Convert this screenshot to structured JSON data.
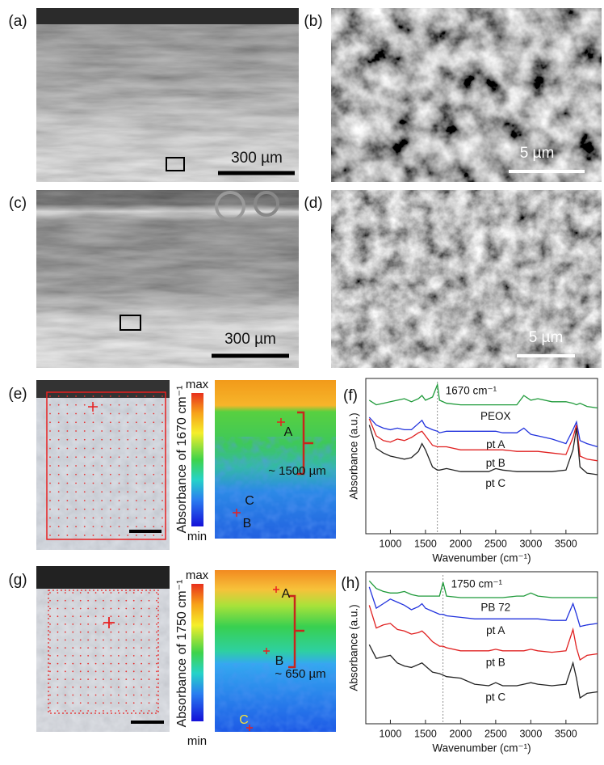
{
  "panel_labels": [
    "(a)",
    "(b)",
    "(c)",
    "(d)",
    "(e)",
    "(f)",
    "(g)",
    "(h)"
  ],
  "scale_bars": {
    "a": "300 µm",
    "b": "5 µm",
    "c": "300 µm",
    "d": "5 µm"
  },
  "map_e": {
    "colorbar_max": "max",
    "colorbar_min": "min",
    "colorbar_label": "Absorbance of 1670 cm⁻¹",
    "points": [
      "A",
      "B",
      "C"
    ],
    "depth": "~ 1500 µm"
  },
  "map_g": {
    "colorbar_max": "max",
    "colorbar_min": "min",
    "colorbar_label": "Absorbance of 1750 cm⁻¹",
    "points": [
      "A",
      "B",
      "C"
    ],
    "depth": "~ 650 µm"
  },
  "chart_data": [
    {
      "type": "line",
      "annotation": "1670 cm⁻¹",
      "reference_line": 1670,
      "xlabel": "Wavenumber (cm⁻¹)",
      "ylabel": "Absorbance (a.u.)",
      "xlim": [
        650,
        3950
      ],
      "xticks": [
        1000,
        1500,
        2000,
        2500,
        3000,
        3500
      ],
      "ylim": [
        0,
        10
      ],
      "x": [
        700,
        800,
        900,
        1000,
        1100,
        1200,
        1300,
        1400,
        1450,
        1500,
        1600,
        1670,
        1700,
        1800,
        2000,
        2200,
        2400,
        2500,
        2600,
        2800,
        2900,
        3000,
        3100,
        3300,
        3500,
        3600,
        3650,
        3700,
        3800,
        3950
      ],
      "series": [
        {
          "name": "PEOX",
          "color": "#1f9a3a",
          "values": [
            8.6,
            8.3,
            8.4,
            8.5,
            8.6,
            8.7,
            8.5,
            8.7,
            8.9,
            8.6,
            8.8,
            9.6,
            8.6,
            8.4,
            8.3,
            8.3,
            8.3,
            8.3,
            8.3,
            8.3,
            8.9,
            8.6,
            8.7,
            8.5,
            8.5,
            8.4,
            8.3,
            8.4,
            8.2,
            8.1
          ]
        },
        {
          "name": "pt A",
          "color": "#2233dd",
          "values": [
            7.5,
            7.0,
            6.8,
            6.7,
            6.8,
            6.7,
            6.7,
            7.1,
            7.3,
            6.9,
            6.7,
            6.6,
            6.5,
            6.6,
            6.6,
            6.6,
            6.6,
            6.6,
            6.5,
            6.5,
            6.8,
            6.4,
            6.3,
            6.1,
            5.8,
            6.7,
            7.2,
            6.0,
            5.8,
            5.6
          ]
        },
        {
          "name": "pt B",
          "color": "#e02020",
          "values": [
            7.4,
            6.3,
            6.0,
            5.9,
            6.1,
            6.0,
            6.2,
            6.5,
            6.6,
            6.3,
            5.7,
            5.6,
            5.6,
            5.6,
            5.4,
            5.4,
            5.4,
            5.4,
            5.4,
            5.3,
            5.3,
            5.3,
            5.3,
            5.2,
            5.1,
            6.2,
            7.0,
            5.0,
            4.8,
            4.7
          ]
        },
        {
          "name": "pt C",
          "color": "#222222",
          "values": [
            7.0,
            5.5,
            5.2,
            5.0,
            4.9,
            4.8,
            4.9,
            5.3,
            5.8,
            5.4,
            4.3,
            4.1,
            4.1,
            4.2,
            4.0,
            4.0,
            4.0,
            4.2,
            4.1,
            4.0,
            4.0,
            4.0,
            4.0,
            4.0,
            4.1,
            5.4,
            6.8,
            4.3,
            3.9,
            3.8
          ]
        }
      ]
    },
    {
      "type": "line",
      "annotation": "1750 cm⁻¹",
      "reference_line": 1750,
      "xlabel": "Wavenumber (cm⁻¹)",
      "ylabel": "Absorbance (a.u.)",
      "xlim": [
        650,
        3950
      ],
      "xticks": [
        1000,
        1500,
        2000,
        2500,
        3000,
        3500
      ],
      "ylim": [
        0,
        10
      ],
      "x": [
        700,
        800,
        900,
        1000,
        1100,
        1200,
        1300,
        1400,
        1450,
        1500,
        1600,
        1700,
        1750,
        1800,
        2000,
        2200,
        2400,
        2500,
        2600,
        2800,
        2900,
        3000,
        3100,
        3300,
        3500,
        3600,
        3650,
        3700,
        3800,
        3950
      ],
      "series": [
        {
          "name": "PB 72",
          "color": "#1f9a3a",
          "values": [
            9.4,
            8.9,
            8.7,
            8.6,
            8.6,
            8.7,
            8.5,
            8.4,
            8.4,
            8.4,
            8.4,
            8.4,
            9.3,
            8.4,
            8.3,
            8.3,
            8.3,
            8.3,
            8.3,
            8.4,
            8.4,
            8.6,
            8.4,
            8.3,
            8.3,
            8.3,
            8.3,
            8.3,
            8.3,
            8.3
          ]
        },
        {
          "name": "pt A",
          "color": "#2233dd",
          "values": [
            9.0,
            7.6,
            7.9,
            8.2,
            8.0,
            7.8,
            7.5,
            7.7,
            7.9,
            7.6,
            7.4,
            7.2,
            7.2,
            7.1,
            7.0,
            6.9,
            6.9,
            6.9,
            6.9,
            6.9,
            6.9,
            6.9,
            6.9,
            6.8,
            6.8,
            7.9,
            7.2,
            6.4,
            6.5,
            6.6
          ]
        },
        {
          "name": "pt B",
          "color": "#e02020",
          "values": [
            7.8,
            6.3,
            6.5,
            6.6,
            6.2,
            6.1,
            5.9,
            6.0,
            6.1,
            5.9,
            5.4,
            5.1,
            5.1,
            5.0,
            4.8,
            4.8,
            4.8,
            4.9,
            4.8,
            4.8,
            4.8,
            4.9,
            4.8,
            4.7,
            4.8,
            6.2,
            5.0,
            4.2,
            4.5,
            4.6
          ]
        },
        {
          "name": "pt C",
          "color": "#222222",
          "values": [
            5.2,
            4.3,
            4.4,
            4.5,
            4.0,
            3.8,
            3.7,
            3.9,
            4.0,
            3.8,
            3.4,
            3.3,
            3.2,
            3.1,
            3.0,
            2.6,
            2.5,
            2.7,
            2.5,
            2.5,
            2.6,
            2.7,
            2.6,
            2.5,
            2.6,
            4.0,
            3.0,
            1.7,
            2.0,
            2.1
          ]
        }
      ]
    }
  ]
}
